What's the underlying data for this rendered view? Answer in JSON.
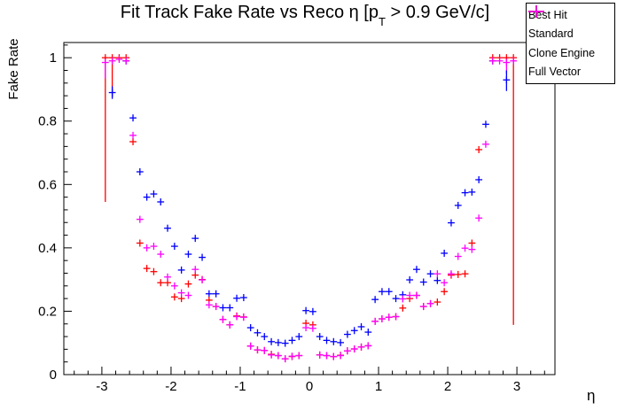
{
  "title": {
    "prefix": "Fit Track Fake Rate vs Reco η [p",
    "sub": "T",
    "suffix": " > 0.9 GeV/c]"
  },
  "axes": {
    "x": {
      "label": "η",
      "tick_labels": [
        -3,
        -2,
        -1,
        0,
        1,
        2,
        3
      ]
    },
    "y": {
      "label": "Fake Rate",
      "tick_labels": [
        0,
        0.2,
        0.4,
        0.6,
        0.8,
        1
      ]
    }
  },
  "legend": {
    "items": [
      {
        "label": "Best Hit",
        "color": "#0000ff"
      },
      {
        "label": "Standard",
        "color": "#00bf00"
      },
      {
        "label": "Clone Engine",
        "color": "#ff0000"
      },
      {
        "label": "Full Vector",
        "color": "#ff00ff"
      }
    ]
  },
  "chart_data": {
    "type": "scatter",
    "title": "Fit Track Fake Rate vs Reco η [p_T > 0.9 GeV/c]",
    "xlabel": "η",
    "ylabel": "Fake Rate",
    "xlim": [
      -3.55,
      3.55
    ],
    "ylim": [
      0,
      1.048
    ],
    "x_major_ticks": [
      -3,
      -2,
      -1,
      0,
      1,
      2,
      3
    ],
    "y_major_ticks": [
      0,
      0.2,
      0.4,
      0.6,
      0.8,
      1
    ],
    "x_minor_step": 0.2,
    "y_minor_step": 0.04,
    "bin_half_width": 0.05,
    "grid": false,
    "legend_position": "top-right",
    "series": [
      {
        "name": "Best Hit",
        "color": "#0000ff",
        "points": [
          [
            -2.85,
            0.89
          ],
          [
            -2.65,
            0.99
          ],
          [
            -2.55,
            0.81
          ],
          [
            -2.45,
            0.64
          ],
          [
            -2.35,
            0.56
          ],
          [
            -2.25,
            0.57
          ],
          [
            -2.15,
            0.545
          ],
          [
            -2.05,
            0.462
          ],
          [
            -1.95,
            0.405
          ],
          [
            -1.85,
            0.33
          ],
          [
            -1.75,
            0.38
          ],
          [
            -1.65,
            0.43
          ],
          [
            -1.55,
            0.37
          ],
          [
            -1.45,
            0.255
          ],
          [
            -1.35,
            0.255
          ],
          [
            -1.25,
            0.211
          ],
          [
            -1.15,
            0.211
          ],
          [
            -1.05,
            0.241
          ],
          [
            -0.95,
            0.243
          ],
          [
            -0.85,
            0.148
          ],
          [
            -0.75,
            0.132
          ],
          [
            -0.65,
            0.12
          ],
          [
            -0.55,
            0.104
          ],
          [
            -0.45,
            0.101
          ],
          [
            -0.35,
            0.099
          ],
          [
            -0.25,
            0.108
          ],
          [
            -0.15,
            0.12
          ],
          [
            -0.05,
            0.202
          ],
          [
            0.05,
            0.199
          ],
          [
            0.15,
            0.12
          ],
          [
            0.25,
            0.108
          ],
          [
            0.35,
            0.104
          ],
          [
            0.45,
            0.101
          ],
          [
            0.55,
            0.127
          ],
          [
            0.65,
            0.139
          ],
          [
            0.75,
            0.151
          ],
          [
            0.85,
            0.134
          ],
          [
            0.95,
            0.237
          ],
          [
            1.05,
            0.262
          ],
          [
            1.15,
            0.262
          ],
          [
            1.25,
            0.24
          ],
          [
            1.35,
            0.252
          ],
          [
            1.45,
            0.299
          ],
          [
            1.55,
            0.332
          ],
          [
            1.65,
            0.292
          ],
          [
            1.75,
            0.318
          ],
          [
            1.85,
            0.297
          ],
          [
            1.95,
            0.383
          ],
          [
            2.05,
            0.479
          ],
          [
            2.15,
            0.534
          ],
          [
            2.25,
            0.574
          ],
          [
            2.35,
            0.576
          ],
          [
            2.45,
            0.615
          ],
          [
            2.55,
            0.79
          ],
          [
            2.65,
            0.99
          ],
          [
            2.85,
            0.93
          ]
        ]
      },
      {
        "name": "Standard",
        "color": "#00bf00",
        "points": [],
        "note": "no green points visible; fully overlapped by Clone Engine"
      },
      {
        "name": "Clone Engine",
        "color": "#ff0000",
        "points": [
          [
            -2.95,
            1.0
          ],
          [
            -2.85,
            1.0
          ],
          [
            -2.75,
            1.0
          ],
          [
            -2.65,
            1.0
          ],
          [
            -2.55,
            0.735
          ],
          [
            -2.45,
            0.415
          ],
          [
            -2.35,
            0.335
          ],
          [
            -2.25,
            0.325
          ],
          [
            -2.15,
            0.29
          ],
          [
            -2.05,
            0.29
          ],
          [
            -1.95,
            0.245
          ],
          [
            -1.85,
            0.24
          ],
          [
            -1.75,
            0.286
          ],
          [
            -1.65,
            0.314
          ],
          [
            -1.55,
            0.3
          ],
          [
            -1.45,
            0.235
          ],
          [
            -1.35,
            0.215
          ],
          [
            -1.25,
            0.174
          ],
          [
            -1.15,
            0.157
          ],
          [
            -1.05,
            0.185
          ],
          [
            -0.95,
            0.182
          ],
          [
            -0.85,
            0.09
          ],
          [
            -0.75,
            0.078
          ],
          [
            -0.65,
            0.076
          ],
          [
            -0.55,
            0.064
          ],
          [
            -0.45,
            0.06
          ],
          [
            -0.35,
            0.05
          ],
          [
            -0.25,
            0.057
          ],
          [
            -0.15,
            0.06
          ],
          [
            -0.05,
            0.162
          ],
          [
            0.05,
            0.157
          ],
          [
            0.15,
            0.062
          ],
          [
            0.25,
            0.06
          ],
          [
            0.35,
            0.057
          ],
          [
            0.45,
            0.061
          ],
          [
            0.55,
            0.075
          ],
          [
            0.65,
            0.081
          ],
          [
            0.75,
            0.087
          ],
          [
            0.85,
            0.091
          ],
          [
            0.95,
            0.168
          ],
          [
            1.05,
            0.176
          ],
          [
            1.15,
            0.181
          ],
          [
            1.25,
            0.183
          ],
          [
            1.35,
            0.21
          ],
          [
            1.45,
            0.24
          ],
          [
            1.55,
            0.25
          ],
          [
            1.65,
            0.215
          ],
          [
            1.75,
            0.224
          ],
          [
            1.85,
            0.229
          ],
          [
            1.95,
            0.262
          ],
          [
            2.05,
            0.314
          ],
          [
            2.15,
            0.316
          ],
          [
            2.25,
            0.318
          ],
          [
            2.35,
            0.415
          ],
          [
            2.45,
            0.71
          ],
          [
            2.65,
            1.0
          ],
          [
            2.75,
            1.0
          ],
          [
            2.85,
            1.0
          ],
          [
            2.95,
            1.0
          ]
        ]
      },
      {
        "name": "Full Vector",
        "color": "#ff00ff",
        "points": [
          [
            -2.95,
            0.985
          ],
          [
            -2.85,
            0.99
          ],
          [
            -2.75,
            0.995
          ],
          [
            -2.65,
            0.99
          ],
          [
            -2.55,
            0.755
          ],
          [
            -2.45,
            0.49
          ],
          [
            -2.35,
            0.4
          ],
          [
            -2.25,
            0.405
          ],
          [
            -2.15,
            0.38
          ],
          [
            -2.05,
            0.308
          ],
          [
            -1.95,
            0.28
          ],
          [
            -1.85,
            0.258
          ],
          [
            -1.75,
            0.25
          ],
          [
            -1.65,
            0.332
          ],
          [
            -1.55,
            0.299
          ],
          [
            -1.45,
            0.22
          ],
          [
            -1.35,
            0.215
          ],
          [
            -1.25,
            0.174
          ],
          [
            -1.15,
            0.157
          ],
          [
            -1.05,
            0.183
          ],
          [
            -0.95,
            0.181
          ],
          [
            -0.85,
            0.09
          ],
          [
            -0.75,
            0.078
          ],
          [
            -0.65,
            0.076
          ],
          [
            -0.55,
            0.062
          ],
          [
            -0.45,
            0.06
          ],
          [
            -0.35,
            0.05
          ],
          [
            -0.25,
            0.058
          ],
          [
            -0.15,
            0.06
          ],
          [
            -0.05,
            0.148
          ],
          [
            0.05,
            0.146
          ],
          [
            0.15,
            0.062
          ],
          [
            0.25,
            0.06
          ],
          [
            0.35,
            0.057
          ],
          [
            0.45,
            0.06
          ],
          [
            0.55,
            0.075
          ],
          [
            0.65,
            0.081
          ],
          [
            0.75,
            0.087
          ],
          [
            0.85,
            0.091
          ],
          [
            0.95,
            0.168
          ],
          [
            1.05,
            0.176
          ],
          [
            1.15,
            0.181
          ],
          [
            1.25,
            0.183
          ],
          [
            1.35,
            0.239
          ],
          [
            1.45,
            0.25
          ],
          [
            1.55,
            0.25
          ],
          [
            1.65,
            0.215
          ],
          [
            1.75,
            0.224
          ],
          [
            1.85,
            0.318
          ],
          [
            1.95,
            0.29
          ],
          [
            2.05,
            0.318
          ],
          [
            2.15,
            0.373
          ],
          [
            2.25,
            0.399
          ],
          [
            2.35,
            0.395
          ],
          [
            2.45,
            0.494
          ],
          [
            2.55,
            0.727
          ],
          [
            2.65,
            0.99
          ],
          [
            2.75,
            0.99
          ],
          [
            2.85,
            0.985
          ],
          [
            2.95,
            0.99
          ]
        ]
      }
    ],
    "error_bars": [
      {
        "series": "Clone Engine",
        "eta": -2.95,
        "lo": 0.545,
        "hi": 1.0
      },
      {
        "series": "Clone Engine",
        "eta": -2.85,
        "lo": 0.875,
        "hi": 1.0
      },
      {
        "series": "Full Vector",
        "eta": -2.95,
        "lo": 0.935,
        "hi": 1.0
      },
      {
        "series": "Best Hit",
        "eta": -2.85,
        "lo": 0.87,
        "hi": 0.91
      },
      {
        "series": "Clone Engine",
        "eta": 2.95,
        "lo": 0.157,
        "hi": 1.0
      },
      {
        "series": "Full Vector",
        "eta": 2.85,
        "lo": 0.95,
        "hi": 1.0
      },
      {
        "series": "Best Hit",
        "eta": 2.85,
        "lo": 0.895,
        "hi": 0.96
      }
    ]
  }
}
